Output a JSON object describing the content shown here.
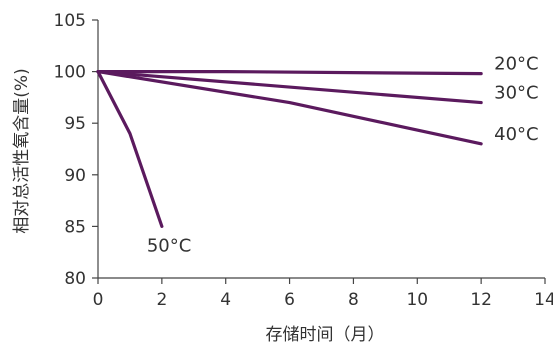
{
  "chart_data": {
    "type": "line",
    "title": "",
    "xlabel": "存储时间（月）",
    "ylabel": "相对总活性氧含量(%)",
    "xlim": [
      0,
      14
    ],
    "ylim": [
      80,
      105
    ],
    "x_ticks": [
      0,
      2,
      4,
      6,
      8,
      10,
      12,
      14
    ],
    "y_ticks": [
      80,
      85,
      90,
      95,
      100,
      105
    ],
    "grid": false,
    "line_color": "#5b1a5e",
    "series": [
      {
        "name": "20°C",
        "x": [
          0,
          2,
          4,
          12
        ],
        "y": [
          100,
          100,
          100,
          99.8
        ]
      },
      {
        "name": "30°C",
        "x": [
          0,
          12
        ],
        "y": [
          100,
          97
        ]
      },
      {
        "name": "40°C",
        "x": [
          0,
          6,
          12
        ],
        "y": [
          100,
          97,
          93
        ]
      },
      {
        "name": "50°C",
        "x": [
          0,
          1,
          2
        ],
        "y": [
          100,
          94,
          85
        ]
      }
    ]
  }
}
